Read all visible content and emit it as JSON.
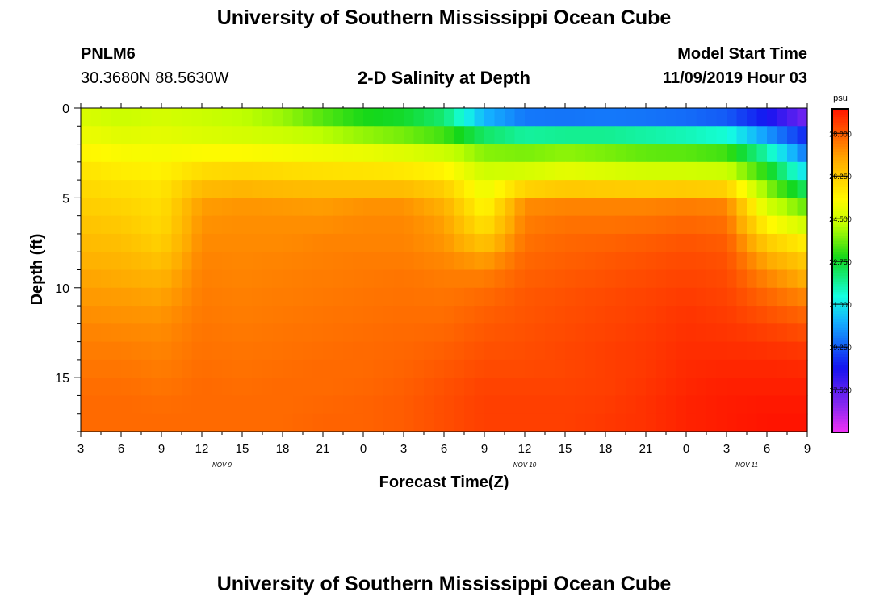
{
  "header": {
    "title": "University of Southern Mississippi Ocean Cube",
    "station_id": "PNLM6",
    "station_coords": "30.3680N 88.5630W",
    "plot_title": "2-D Salinity at Depth",
    "model_start_label": "Model Start Time",
    "model_start_value": "11/09/2019 Hour 03"
  },
  "footer": {
    "title": "University of Southern Mississippi Ocean Cube"
  },
  "chart_data": {
    "type": "heatmap",
    "title": "2-D Salinity at Depth",
    "xlabel": "Forecast Time(Z)",
    "ylabel": "Depth (ft)",
    "x_ticks": [
      "3",
      "6",
      "9",
      "12",
      "15",
      "18",
      "21",
      "0",
      "3",
      "6",
      "9",
      "12",
      "15",
      "18",
      "21",
      "0",
      "3",
      "6",
      "9"
    ],
    "x_hours_from_start": [
      0,
      3,
      6,
      9,
      12,
      15,
      18,
      21,
      24,
      27,
      30,
      33,
      36,
      39,
      42,
      45,
      48,
      51,
      54
    ],
    "x_range_hours": [
      0,
      54
    ],
    "date_labels": [
      {
        "text": "NOV 9",
        "hour": 10.5
      },
      {
        "text": "NOV 10",
        "hour": 33
      },
      {
        "text": "NOV 11",
        "hour": 49.5
      }
    ],
    "y_ticks": [
      0,
      5,
      10,
      15
    ],
    "y_range_ft": [
      0,
      18
    ],
    "y_inverted": true,
    "colorbar": {
      "unit": "psu",
      "range": [
        15.75,
        29.0
      ],
      "tick_values": [
        28.0,
        26.25,
        24.5,
        22.75,
        21.0,
        19.25,
        17.5
      ],
      "tick_labels": [
        "28.000",
        "26.250",
        "24.500",
        "22.750",
        "21.000",
        "19.250",
        "17.500"
      ]
    },
    "time_hours": [
      0,
      3,
      6,
      9,
      12,
      15,
      18,
      21,
      24,
      27,
      30,
      33,
      36,
      39,
      42,
      45,
      48,
      51,
      54
    ],
    "depth_ft": [
      0,
      1,
      2,
      3,
      4,
      5,
      6,
      7,
      8,
      9,
      10,
      11,
      12,
      13,
      14,
      15,
      16,
      17,
      18
    ],
    "salinity_psu": [
      [
        24.6,
        24.3,
        24.5,
        24.4,
        24.1,
        23.7,
        23.0,
        22.5,
        22.4,
        21.8,
        19.5,
        18.7,
        18.5,
        18.5,
        18.5,
        18.5,
        18.3,
        17.8,
        16.0
      ],
      [
        24.8,
        24.6,
        24.7,
        24.5,
        24.4,
        24.2,
        23.8,
        23.4,
        23.1,
        22.6,
        21.2,
        20.5,
        20.6,
        20.7,
        20.6,
        20.4,
        20.2,
        19.0,
        18.2
      ],
      [
        25.2,
        25.0,
        25.0,
        24.9,
        24.8,
        24.7,
        24.6,
        24.4,
        24.2,
        23.9,
        23.4,
        23.2,
        23.3,
        23.2,
        23.0,
        22.9,
        22.6,
        21.0,
        19.0
      ],
      [
        25.6,
        25.4,
        25.3,
        25.6,
        25.7,
        25.6,
        25.5,
        25.5,
        25.3,
        25.0,
        24.2,
        24.2,
        24.4,
        24.2,
        24.0,
        24.0,
        23.9,
        22.5,
        20.0
      ],
      [
        25.9,
        25.7,
        25.6,
        26.2,
        26.3,
        26.2,
        26.1,
        26.0,
        26.0,
        25.8,
        24.8,
        25.0,
        25.3,
        25.2,
        25.1,
        25.1,
        25.0,
        23.5,
        21.5
      ],
      [
        26.1,
        26.0,
        25.8,
        27.0,
        27.1,
        27.0,
        27.0,
        27.1,
        27.1,
        26.6,
        25.1,
        27.2,
        27.3,
        27.3,
        27.3,
        27.4,
        27.3,
        24.2,
        23.0
      ],
      [
        26.3,
        26.2,
        25.9,
        27.2,
        27.3,
        27.3,
        27.2,
        27.4,
        27.4,
        27.0,
        25.5,
        27.5,
        27.6,
        27.6,
        27.6,
        27.7,
        27.6,
        25.0,
        24.0
      ],
      [
        26.5,
        26.4,
        26.0,
        27.3,
        27.3,
        27.3,
        27.4,
        27.4,
        27.4,
        27.1,
        26.0,
        27.6,
        27.8,
        27.8,
        27.9,
        28.0,
        27.9,
        25.8,
        25.0
      ],
      [
        26.7,
        26.6,
        26.3,
        27.4,
        27.4,
        27.4,
        27.5,
        27.5,
        27.5,
        27.3,
        26.8,
        27.8,
        27.9,
        28.0,
        28.1,
        28.2,
        28.1,
        26.7,
        26.0
      ],
      [
        26.9,
        26.8,
        26.6,
        27.5,
        27.4,
        27.5,
        27.5,
        27.6,
        27.6,
        27.5,
        27.4,
        27.9,
        28.0,
        28.1,
        28.2,
        28.3,
        28.2,
        27.2,
        26.5
      ],
      [
        27.1,
        27.0,
        26.9,
        27.5,
        27.5,
        27.5,
        27.6,
        27.6,
        27.7,
        27.6,
        27.7,
        28.0,
        28.1,
        28.2,
        28.3,
        28.4,
        28.3,
        27.7,
        27.1
      ],
      [
        27.2,
        27.2,
        27.1,
        27.6,
        27.5,
        27.6,
        27.6,
        27.7,
        27.7,
        27.7,
        27.9,
        28.1,
        28.2,
        28.3,
        28.4,
        28.5,
        28.4,
        28.0,
        27.7
      ],
      [
        27.4,
        27.3,
        27.3,
        27.6,
        27.6,
        27.6,
        27.7,
        27.7,
        27.8,
        27.8,
        28.0,
        28.1,
        28.2,
        28.3,
        28.4,
        28.6,
        28.5,
        28.3,
        28.0
      ],
      [
        27.5,
        27.5,
        27.4,
        27.7,
        27.6,
        27.7,
        27.7,
        27.8,
        27.8,
        27.9,
        28.1,
        28.2,
        28.3,
        28.4,
        28.5,
        28.6,
        28.6,
        28.5,
        28.4
      ],
      [
        27.6,
        27.6,
        27.5,
        27.7,
        27.7,
        27.7,
        27.8,
        27.8,
        27.9,
        28.0,
        28.2,
        28.2,
        28.3,
        28.4,
        28.5,
        28.7,
        28.7,
        28.7,
        28.6
      ],
      [
        27.7,
        27.7,
        27.6,
        27.8,
        27.7,
        27.8,
        27.8,
        27.8,
        27.9,
        28.1,
        28.3,
        28.3,
        28.3,
        28.4,
        28.5,
        28.7,
        28.8,
        28.8,
        28.8
      ],
      [
        27.8,
        27.8,
        27.7,
        27.8,
        27.8,
        27.8,
        27.8,
        27.9,
        28.0,
        28.2,
        28.4,
        28.4,
        28.4,
        28.4,
        28.6,
        28.8,
        28.9,
        28.9,
        28.9
      ],
      [
        27.8,
        27.8,
        27.8,
        27.8,
        27.8,
        27.8,
        27.9,
        27.9,
        28.0,
        28.2,
        28.4,
        28.4,
        28.4,
        28.5,
        28.6,
        28.8,
        28.9,
        29.0,
        29.0
      ],
      [
        27.8,
        27.8,
        27.8,
        27.8,
        27.8,
        27.8,
        27.9,
        27.9,
        28.0,
        28.2,
        28.4,
        28.4,
        28.4,
        28.5,
        28.6,
        28.8,
        28.9,
        29.0,
        29.0
      ]
    ]
  }
}
